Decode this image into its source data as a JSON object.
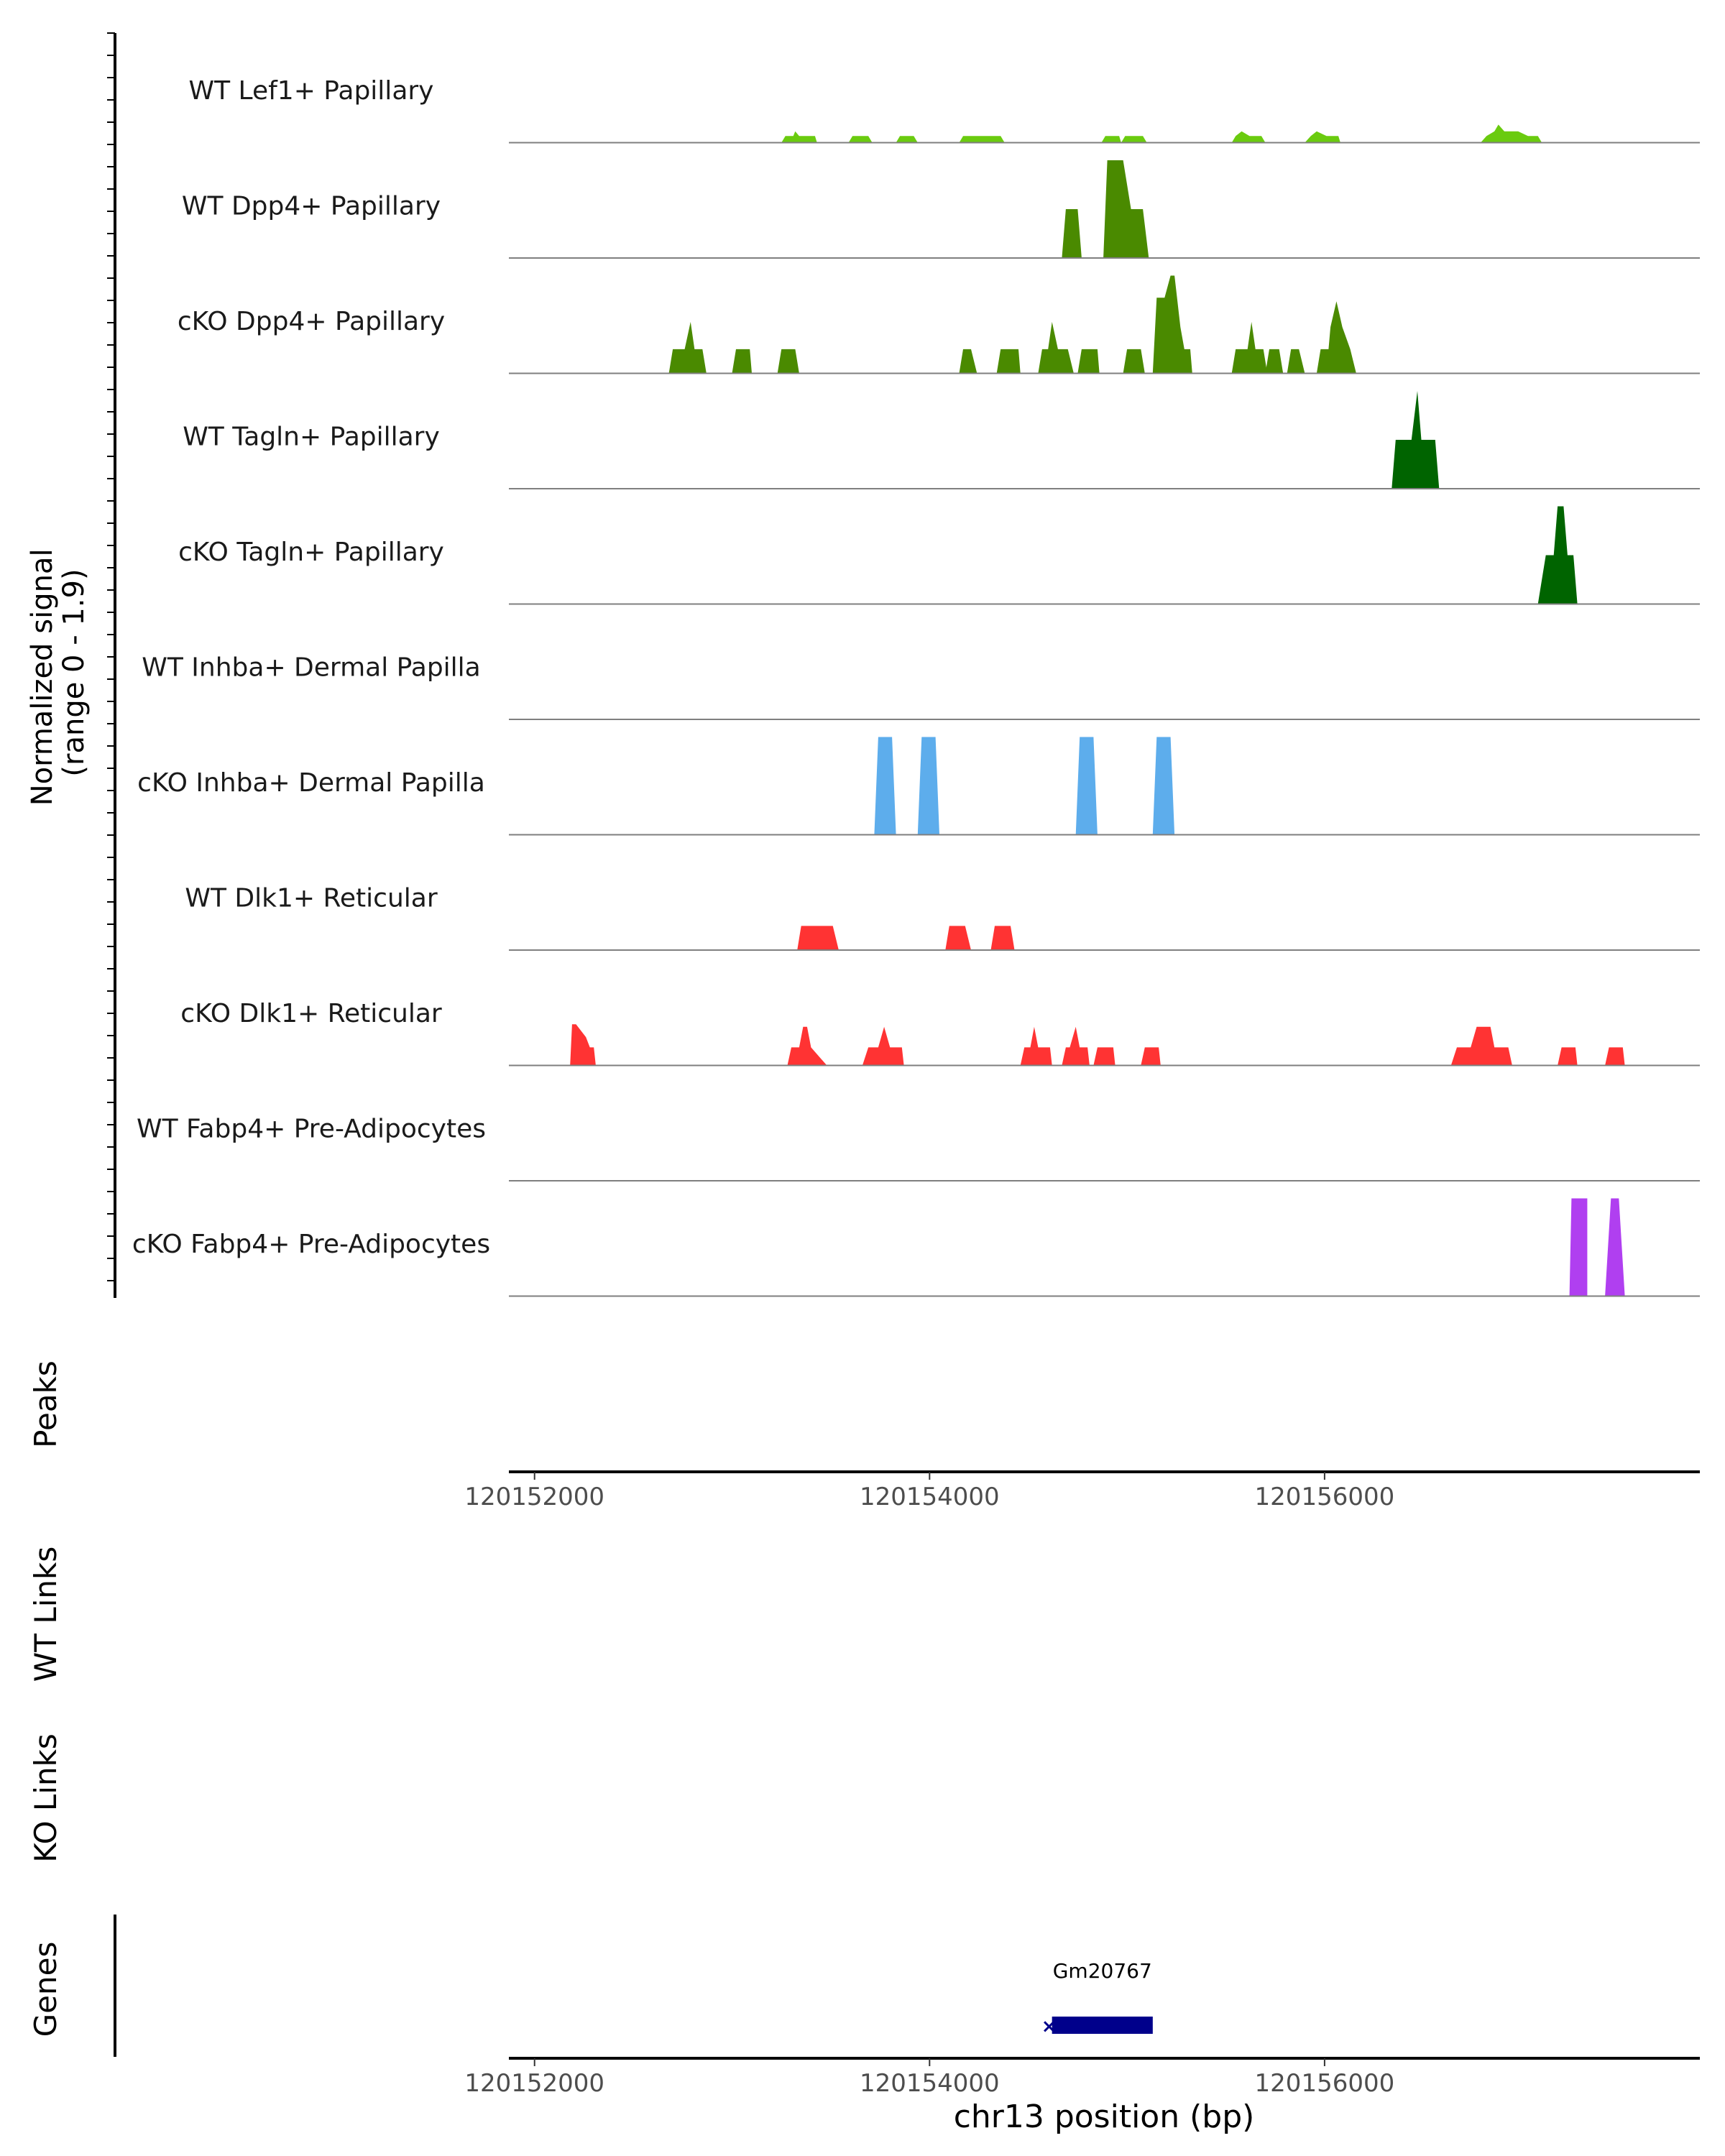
{
  "chart_data": {
    "type": "area",
    "signal_axis_label": [
      "Normalized signal",
      "(range 0 - 1.9)"
    ],
    "y_range": [
      0,
      1.9
    ],
    "x_domain": [
      120151870,
      120157900
    ],
    "x_ticks": [
      120152000,
      120154000,
      120156000
    ],
    "x_tick_labels": [
      "120152000",
      "120154000",
      "120156000"
    ],
    "xlabel": "chr13 position (bp)",
    "tracks": [
      {
        "name": "WT Lef1+ Papillary",
        "color": "#6ACB0F",
        "points": [
          [
            120153250,
            0
          ],
          [
            120153270,
            0.13
          ],
          [
            120153310,
            0.13
          ],
          [
            120153320,
            0.22
          ],
          [
            120153340,
            0.13
          ],
          [
            120153420,
            0.13
          ],
          [
            120153430,
            0
          ],
          [
            120153590,
            0
          ],
          [
            120153610,
            0.13
          ],
          [
            120153690,
            0.13
          ],
          [
            120153710,
            0
          ],
          [
            120153830,
            0
          ],
          [
            120153850,
            0.13
          ],
          [
            120153920,
            0.13
          ],
          [
            120153940,
            0
          ],
          [
            120154150,
            0
          ],
          [
            120154170,
            0.13
          ],
          [
            120154360,
            0.13
          ],
          [
            120154380,
            0
          ],
          [
            120154870,
            0
          ],
          [
            120154890,
            0.13
          ],
          [
            120154960,
            0.13
          ],
          [
            120154970,
            0
          ],
          [
            120154990,
            0.13
          ],
          [
            120155080,
            0.13
          ],
          [
            120155100,
            0
          ],
          [
            120155530,
            0
          ],
          [
            120155550,
            0.13
          ],
          [
            120155580,
            0.22
          ],
          [
            120155620,
            0.13
          ],
          [
            120155680,
            0.13
          ],
          [
            120155700,
            0
          ],
          [
            120155900,
            0
          ],
          [
            120155930,
            0.13
          ],
          [
            120155960,
            0.22
          ],
          [
            120156010,
            0.13
          ],
          [
            120156070,
            0.13
          ],
          [
            120156080,
            0
          ],
          [
            120156790,
            0
          ],
          [
            120156820,
            0.13
          ],
          [
            120156860,
            0.22
          ],
          [
            120156880,
            0.35
          ],
          [
            120156910,
            0.22
          ],
          [
            120156980,
            0.22
          ],
          [
            120157030,
            0.13
          ],
          [
            120157080,
            0.13
          ],
          [
            120157100,
            0
          ]
        ]
      },
      {
        "name": "WT Dpp4+ Papillary",
        "color": "#4A8A00",
        "points": [
          [
            120154670,
            0
          ],
          [
            120154690,
            0.95
          ],
          [
            120154750,
            0.95
          ],
          [
            120154770,
            0
          ],
          [
            120154880,
            0
          ],
          [
            120154900,
            1.9
          ],
          [
            120154980,
            1.9
          ],
          [
            120155020,
            0.95
          ],
          [
            120155080,
            0.95
          ],
          [
            120155110,
            0
          ]
        ]
      },
      {
        "name": "cKO Dpp4+ Papillary",
        "color": "#4A8A00",
        "points": [
          [
            120152680,
            0
          ],
          [
            120152700,
            0.47
          ],
          [
            120152760,
            0.47
          ],
          [
            120152790,
            1.0
          ],
          [
            120152810,
            0.47
          ],
          [
            120152850,
            0.47
          ],
          [
            120152870,
            0
          ],
          [
            120153000,
            0
          ],
          [
            120153020,
            0.47
          ],
          [
            120153090,
            0.47
          ],
          [
            120153100,
            0
          ],
          [
            120153230,
            0
          ],
          [
            120153250,
            0.47
          ],
          [
            120153320,
            0.47
          ],
          [
            120153340,
            0
          ],
          [
            120154150,
            0
          ],
          [
            120154170,
            0.47
          ],
          [
            120154210,
            0.47
          ],
          [
            120154240,
            0
          ],
          [
            120154340,
            0
          ],
          [
            120154360,
            0.47
          ],
          [
            120154450,
            0.47
          ],
          [
            120154460,
            0
          ],
          [
            120154550,
            0
          ],
          [
            120154570,
            0.47
          ],
          [
            120154600,
            0.47
          ],
          [
            120154620,
            1.0
          ],
          [
            120154650,
            0.47
          ],
          [
            120154700,
            0.47
          ],
          [
            120154730,
            0
          ],
          [
            120154750,
            0
          ],
          [
            120154770,
            0.47
          ],
          [
            120154850,
            0.47
          ],
          [
            120154860,
            0
          ],
          [
            120154980,
            0
          ],
          [
            120155000,
            0.47
          ],
          [
            120155070,
            0.47
          ],
          [
            120155090,
            0
          ],
          [
            120155130,
            0
          ],
          [
            120155150,
            1.47
          ],
          [
            120155190,
            1.47
          ],
          [
            120155220,
            1.9
          ],
          [
            120155240,
            1.9
          ],
          [
            120155270,
            0.9
          ],
          [
            120155290,
            0.47
          ],
          [
            120155320,
            0.47
          ],
          [
            120155330,
            0
          ],
          [
            120155530,
            0
          ],
          [
            120155550,
            0.47
          ],
          [
            120155610,
            0.47
          ],
          [
            120155630,
            1.0
          ],
          [
            120155650,
            0.47
          ],
          [
            120155690,
            0.47
          ],
          [
            120155710,
            0
          ],
          [
            120155700,
            0
          ],
          [
            120155720,
            0.47
          ],
          [
            120155770,
            0.47
          ],
          [
            120155790,
            0
          ],
          [
            120155810,
            0
          ],
          [
            120155830,
            0.47
          ],
          [
            120155870,
            0.47
          ],
          [
            120155900,
            0
          ],
          [
            120155960,
            0
          ],
          [
            120155980,
            0.47
          ],
          [
            120156020,
            0.47
          ],
          [
            120156030,
            0.9
          ],
          [
            120156060,
            1.4
          ],
          [
            120156090,
            0.9
          ],
          [
            120156130,
            0.47
          ],
          [
            120156160,
            0
          ]
        ]
      },
      {
        "name": "WT Tagln+ Papillary",
        "color": "#006400",
        "points": [
          [
            120156340,
            0
          ],
          [
            120156360,
            0.95
          ],
          [
            120156440,
            0.95
          ],
          [
            120156470,
            1.9
          ],
          [
            120156490,
            0.95
          ],
          [
            120156560,
            0.95
          ],
          [
            120156580,
            0
          ]
        ]
      },
      {
        "name": "cKO Tagln+ Papillary",
        "color": "#006400",
        "points": [
          [
            120157080,
            0
          ],
          [
            120157120,
            0.95
          ],
          [
            120157160,
            0.95
          ],
          [
            120157180,
            1.9
          ],
          [
            120157210,
            1.9
          ],
          [
            120157230,
            0.95
          ],
          [
            120157260,
            0.95
          ],
          [
            120157280,
            0
          ]
        ]
      },
      {
        "name": "WT Inhba+ Dermal Papilla",
        "color": "#5DADEC",
        "points": []
      },
      {
        "name": "cKO Inhba+ Dermal Papilla",
        "color": "#5DADEC",
        "points": [
          [
            120153720,
            0
          ],
          [
            120153740,
            1.9
          ],
          [
            120153810,
            1.9
          ],
          [
            120153830,
            0
          ],
          [
            120153940,
            0
          ],
          [
            120153960,
            1.9
          ],
          [
            120154030,
            1.9
          ],
          [
            120154050,
            0
          ],
          [
            120154740,
            0
          ],
          [
            120154760,
            1.9
          ],
          [
            120154830,
            1.9
          ],
          [
            120154850,
            0
          ],
          [
            120155130,
            0
          ],
          [
            120155150,
            1.9
          ],
          [
            120155220,
            1.9
          ],
          [
            120155240,
            0
          ]
        ]
      },
      {
        "name": "WT Dlk1+ Reticular",
        "color": "#FF3333",
        "points": [
          [
            120153330,
            0
          ],
          [
            120153350,
            0.47
          ],
          [
            120153510,
            0.47
          ],
          [
            120153540,
            0
          ],
          [
            120154080,
            0
          ],
          [
            120154100,
            0.47
          ],
          [
            120154180,
            0.47
          ],
          [
            120154210,
            0
          ],
          [
            120154310,
            0
          ],
          [
            120154330,
            0.47
          ],
          [
            120154410,
            0.47
          ],
          [
            120154430,
            0
          ]
        ]
      },
      {
        "name": "cKO Dlk1+ Reticular",
        "color": "#FF3333",
        "points": [
          [
            120152180,
            0
          ],
          [
            120152190,
            0.8
          ],
          [
            120152210,
            0.8
          ],
          [
            120152260,
            0.55
          ],
          [
            120152280,
            0.35
          ],
          [
            120152300,
            0.35
          ],
          [
            120152310,
            0
          ],
          [
            120153280,
            0
          ],
          [
            120153300,
            0.35
          ],
          [
            120153340,
            0.35
          ],
          [
            120153360,
            0.75
          ],
          [
            120153380,
            0.75
          ],
          [
            120153400,
            0.35
          ],
          [
            120153480,
            0
          ],
          [
            120153660,
            0
          ],
          [
            120153690,
            0.35
          ],
          [
            120153740,
            0.35
          ],
          [
            120153770,
            0.75
          ],
          [
            120153800,
            0.35
          ],
          [
            120153860,
            0.35
          ],
          [
            120153870,
            0
          ],
          [
            120154460,
            0
          ],
          [
            120154480,
            0.35
          ],
          [
            120154510,
            0.35
          ],
          [
            120154530,
            0.75
          ],
          [
            120154550,
            0.35
          ],
          [
            120154610,
            0.35
          ],
          [
            120154620,
            0
          ],
          [
            120154670,
            0
          ],
          [
            120154690,
            0.35
          ],
          [
            120154710,
            0.35
          ],
          [
            120154740,
            0.75
          ],
          [
            120154760,
            0.35
          ],
          [
            120154800,
            0.35
          ],
          [
            120154810,
            0
          ],
          [
            120154830,
            0
          ],
          [
            120154850,
            0.35
          ],
          [
            120154930,
            0.35
          ],
          [
            120154940,
            0
          ],
          [
            120155070,
            0
          ],
          [
            120155090,
            0.35
          ],
          [
            120155160,
            0.35
          ],
          [
            120155170,
            0
          ],
          [
            120156640,
            0
          ],
          [
            120156670,
            0.35
          ],
          [
            120156740,
            0.35
          ],
          [
            120156770,
            0.75
          ],
          [
            120156840,
            0.75
          ],
          [
            120156860,
            0.35
          ],
          [
            120156930,
            0.35
          ],
          [
            120156950,
            0
          ],
          [
            120157180,
            0
          ],
          [
            120157200,
            0.35
          ],
          [
            120157270,
            0.35
          ],
          [
            120157280,
            0
          ],
          [
            120157420,
            0
          ],
          [
            120157440,
            0.35
          ],
          [
            120157510,
            0.35
          ],
          [
            120157520,
            0
          ]
        ]
      },
      {
        "name": "WT Fabp4+ Pre-Adipocytes",
        "color": "#B03FF0",
        "points": []
      },
      {
        "name": "cKO Fabp4+ Pre-Adipocytes",
        "color": "#B03FF0",
        "points": [
          [
            120157240,
            0
          ],
          [
            120157250,
            1.9
          ],
          [
            120157330,
            1.9
          ],
          [
            120157330,
            0
          ],
          [
            120157420,
            0
          ],
          [
            120157450,
            1.9
          ],
          [
            120157490,
            1.9
          ],
          [
            120157520,
            0
          ]
        ]
      }
    ],
    "panels": {
      "peaks": "Peaks",
      "wt_links": "WT Links",
      "ko_links": "KO Links",
      "genes": "Genes"
    },
    "genes": [
      {
        "name": "Gm20767",
        "start": 120154620,
        "end": 120155130,
        "color": "#00008B",
        "strand_marker": "×"
      }
    ]
  }
}
